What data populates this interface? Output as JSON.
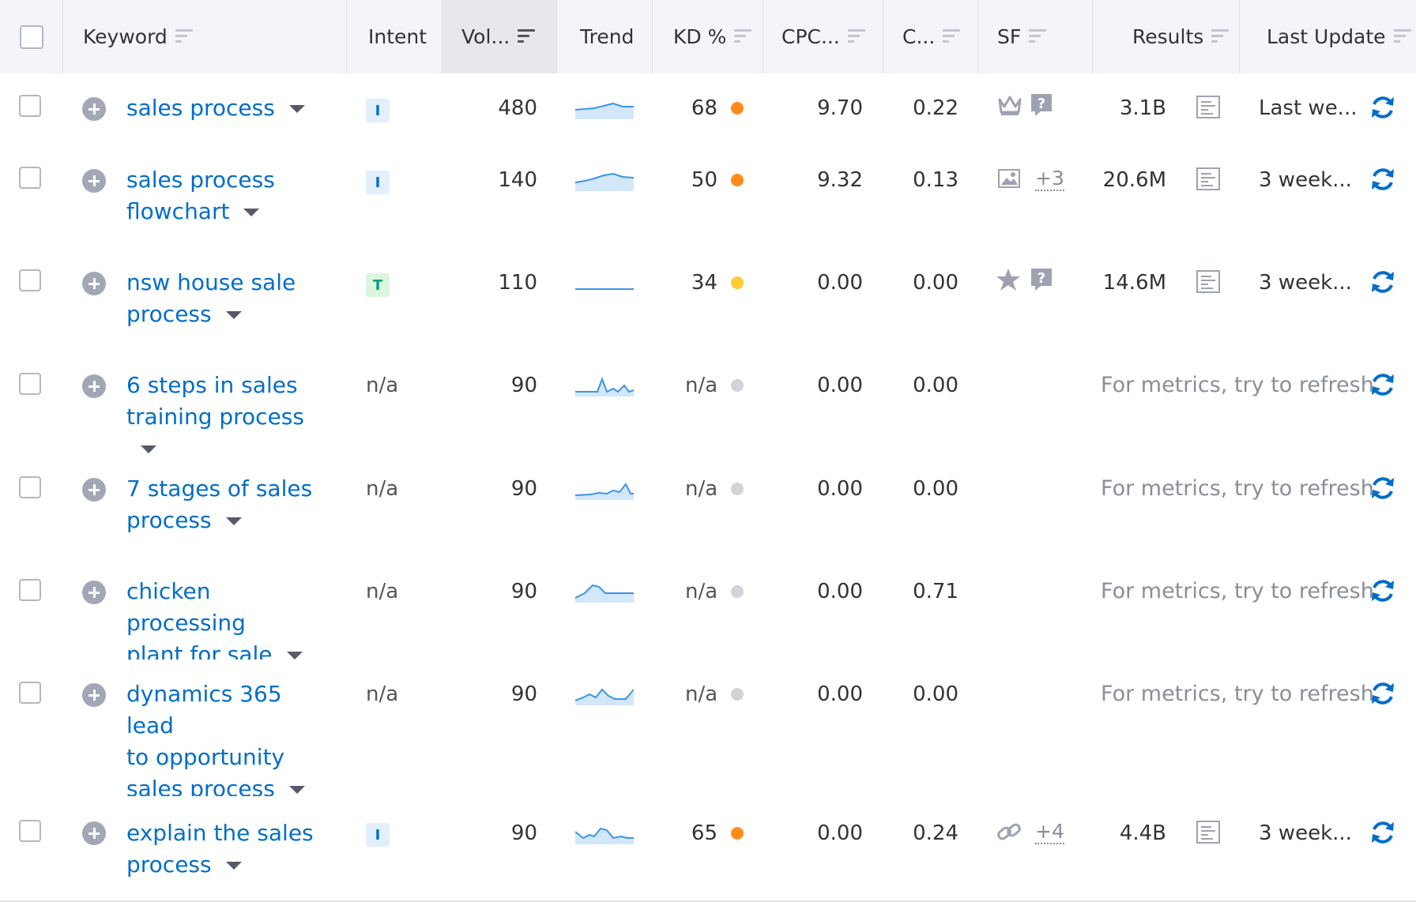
{
  "header": {
    "keyword": "Keyword",
    "intent": "Intent",
    "volume": "Vol...",
    "trend": "Trend",
    "kd": "KD %",
    "cpc": "CPC...",
    "com": "C...",
    "sf": "SF",
    "results": "Results",
    "last_update": "Last Update"
  },
  "colors": {
    "link": "#006dca",
    "kd_orange": "#ff8c1a",
    "kd_yellow": "#ffcc33",
    "kd_na": "#d1d3d9",
    "intent_i_bg": "#e1efff",
    "intent_t_bg": "#dcf6dd"
  },
  "rows": [
    {
      "kw1": "sales process",
      "kw2": "",
      "kw3": "",
      "intent": "I",
      "volume": "480",
      "kd": "68",
      "cpc": "9.70",
      "com": "0.22",
      "sf_icons": [
        "crown-icon",
        "question-icon"
      ],
      "sf_more": "",
      "results": "3.1B",
      "last_update": "Last we..."
    },
    {
      "kw1": "sales process",
      "kw2": "flowchart",
      "kw3": "",
      "intent": "I",
      "volume": "140",
      "kd": "50",
      "cpc": "9.32",
      "com": "0.13",
      "sf_icons": [
        "image-icon"
      ],
      "sf_more": "+3",
      "results": "20.6M",
      "last_update": "3 week..."
    },
    {
      "kw1": "nsw house sale",
      "kw2": "process",
      "kw3": "",
      "intent": "T",
      "volume": "110",
      "kd": "34",
      "cpc": "0.00",
      "com": "0.00",
      "sf_icons": [
        "star-icon",
        "question-icon"
      ],
      "sf_more": "",
      "results": "14.6M",
      "last_update": "3 week..."
    },
    {
      "kw1": "6 steps in sales",
      "kw2": "training process",
      "kw3": "",
      "intent": "n/a",
      "volume": "90",
      "kd": "n/a",
      "cpc": "0.00",
      "com": "0.00",
      "sf_icons": [],
      "sf_more": "",
      "refresh_text": "For metrics, try to refresh"
    },
    {
      "kw1": "7 stages of sales",
      "kw2": "process",
      "kw3": "",
      "intent": "n/a",
      "volume": "90",
      "kd": "n/a",
      "cpc": "0.00",
      "com": "0.00",
      "sf_icons": [],
      "sf_more": "",
      "refresh_text": "For metrics, try to refresh"
    },
    {
      "kw1": "chicken processing",
      "kw2": "plant for sale",
      "kw3": "",
      "intent": "n/a",
      "volume": "90",
      "kd": "n/a",
      "cpc": "0.00",
      "com": "0.71",
      "sf_icons": [],
      "sf_more": "",
      "refresh_text": "For metrics, try to refresh"
    },
    {
      "kw1": "dynamics 365 lead",
      "kw2": "to opportunity",
      "kw3": "sales process",
      "intent": "n/a",
      "volume": "90",
      "kd": "n/a",
      "cpc": "0.00",
      "com": "0.00",
      "sf_icons": [],
      "sf_more": "",
      "refresh_text": "For metrics, try to refresh"
    },
    {
      "kw1": "explain the sales",
      "kw2": "process",
      "kw3": "",
      "intent": "I",
      "volume": "90",
      "kd": "65",
      "cpc": "0.00",
      "com": "0.24",
      "sf_icons": [
        "link-icon"
      ],
      "sf_more": "+4",
      "results": "4.4B",
      "last_update": "3 week..."
    }
  ]
}
